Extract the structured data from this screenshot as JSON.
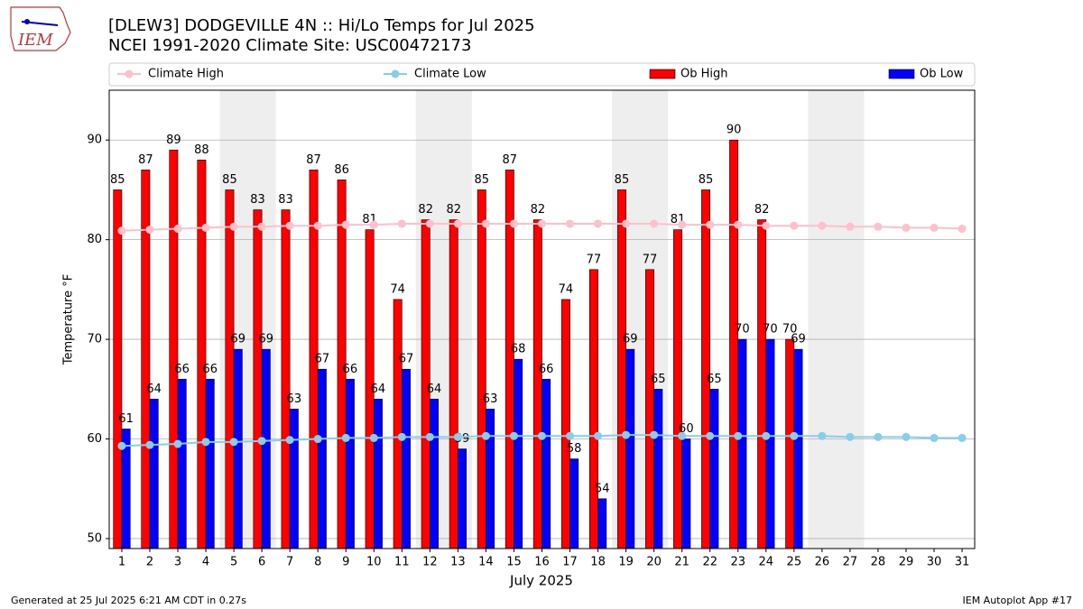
{
  "chart_data": {
    "type": "bar_line",
    "title": "[DLEW3] DODGEVILLE 4N :: Hi/Lo Temps for Jul 2025",
    "subtitle": "NCEI 1991-2020 Climate Site: USC00472173",
    "y_label": "Temperature $^\\circ$F",
    "x_label": "July 2025",
    "footer_left": "Generated at 25 Jul 2025 6:21 AM CDT in 0.27s",
    "footer_right": "IEM Autoplot App #17",
    "logo": "IEM",
    "x": [
      1,
      2,
      3,
      4,
      5,
      6,
      7,
      8,
      9,
      10,
      11,
      12,
      13,
      14,
      15,
      16,
      17,
      18,
      19,
      20,
      21,
      22,
      23,
      24,
      25,
      26,
      27,
      28,
      29,
      30,
      31
    ],
    "xlim": [
      0.55,
      31.45
    ],
    "xticks": [
      1,
      2,
      3,
      4,
      5,
      6,
      7,
      8,
      9,
      10,
      11,
      12,
      13,
      14,
      15,
      16,
      17,
      18,
      19,
      20,
      21,
      22,
      23,
      24,
      25,
      26,
      27,
      28,
      29,
      30,
      31
    ],
    "ylim": [
      49,
      95
    ],
    "yticks": [
      50,
      60,
      70,
      80,
      90
    ],
    "grid": true,
    "shaded_spans": [
      [
        4.5,
        6.5
      ],
      [
        11.5,
        13.5
      ],
      [
        18.5,
        20.5
      ],
      [
        25.5,
        27.5
      ]
    ],
    "series": [
      {
        "name": "Climate High",
        "kind": "line",
        "color": "#ffc0cb",
        "values": [
          80.9,
          81.0,
          81.1,
          81.2,
          81.3,
          81.3,
          81.4,
          81.4,
          81.5,
          81.5,
          81.6,
          81.6,
          81.6,
          81.6,
          81.6,
          81.6,
          81.6,
          81.6,
          81.6,
          81.6,
          81.5,
          81.5,
          81.5,
          81.4,
          81.4,
          81.4,
          81.3,
          81.3,
          81.2,
          81.2,
          81.1
        ]
      },
      {
        "name": "Climate Low",
        "kind": "line",
        "color": "#87ceeb",
        "values": [
          59.3,
          59.4,
          59.5,
          59.7,
          59.7,
          59.8,
          59.9,
          60.0,
          60.1,
          60.1,
          60.2,
          60.2,
          60.2,
          60.3,
          60.3,
          60.3,
          60.3,
          60.3,
          60.4,
          60.4,
          60.3,
          60.3,
          60.3,
          60.3,
          60.3,
          60.3,
          60.2,
          60.2,
          60.2,
          60.1,
          60.1
        ]
      },
      {
        "name": "Ob High",
        "kind": "bar",
        "color": "#ff0000",
        "values": [
          85,
          87,
          89,
          88,
          85,
          83,
          83,
          87,
          86,
          81,
          74,
          82,
          82,
          85,
          87,
          82,
          74,
          77,
          85,
          77,
          81,
          85,
          90,
          82,
          70,
          null,
          null,
          null,
          null,
          null,
          null
        ]
      },
      {
        "name": "Ob Low",
        "kind": "bar",
        "color": "#0000ff",
        "values": [
          61,
          64,
          66,
          66,
          69,
          69,
          63,
          67,
          66,
          64,
          67,
          64,
          59,
          63,
          68,
          66,
          58,
          54,
          69,
          65,
          60,
          65,
          70,
          70,
          69,
          null,
          null,
          null,
          null,
          null,
          null
        ]
      }
    ]
  }
}
